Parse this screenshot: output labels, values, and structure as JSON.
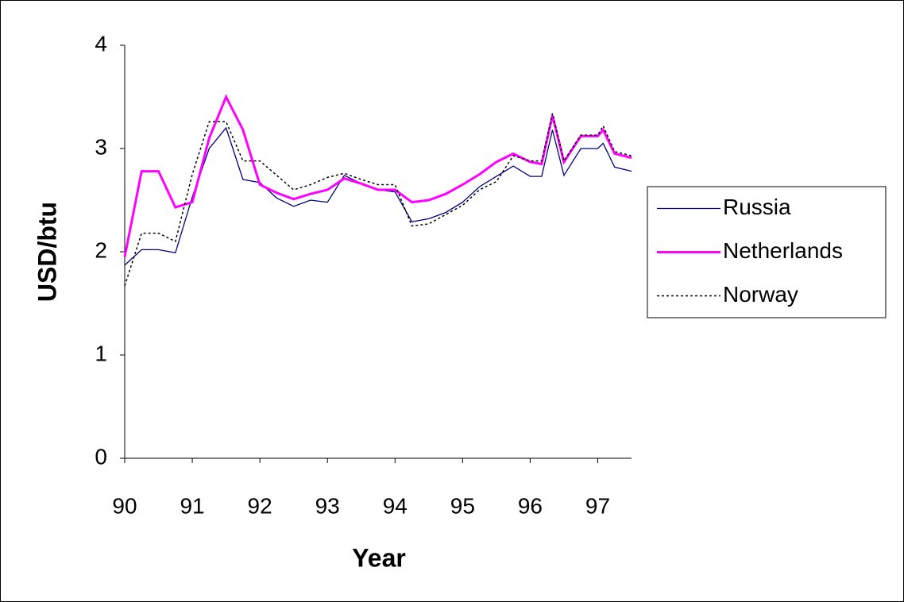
{
  "chart_data": {
    "type": "line",
    "xlabel": "Year",
    "ylabel": "USD/btu",
    "x": [
      90,
      90.25,
      90.5,
      90.75,
      91,
      91.25,
      91.5,
      91.75,
      92,
      92.25,
      92.5,
      92.75,
      93,
      93.25,
      93.5,
      93.75,
      94,
      94.25,
      94.5,
      94.75,
      95,
      95.25,
      95.5,
      95.75,
      96,
      96.17,
      96.33,
      96.5,
      96.75,
      97,
      97.08,
      97.25,
      97.5
    ],
    "series": [
      {
        "name": "Russia",
        "color": "#000080",
        "values": [
          1.87,
          2.02,
          2.02,
          1.99,
          2.53,
          3.0,
          3.2,
          2.7,
          2.67,
          2.52,
          2.44,
          2.5,
          2.48,
          2.74,
          2.66,
          2.6,
          2.58,
          2.29,
          2.32,
          2.38,
          2.48,
          2.63,
          2.73,
          2.83,
          2.73,
          2.73,
          3.18,
          2.74,
          3.0,
          3.0,
          3.05,
          2.82,
          2.78
        ]
      },
      {
        "name": "Netherlands",
        "color": "#ff00ff",
        "values": [
          1.95,
          2.78,
          2.78,
          2.43,
          2.48,
          3.1,
          3.5,
          3.18,
          2.65,
          2.57,
          2.51,
          2.56,
          2.6,
          2.71,
          2.66,
          2.6,
          2.6,
          2.48,
          2.5,
          2.56,
          2.65,
          2.75,
          2.87,
          2.95,
          2.87,
          2.85,
          3.32,
          2.87,
          3.12,
          3.12,
          3.18,
          2.95,
          2.91
        ]
      },
      {
        "name": "Norway",
        "color": "#000000",
        "values": [
          1.67,
          2.18,
          2.18,
          2.1,
          2.75,
          3.26,
          3.26,
          2.88,
          2.88,
          2.74,
          2.6,
          2.65,
          2.72,
          2.76,
          2.7,
          2.65,
          2.65,
          2.25,
          2.27,
          2.36,
          2.45,
          2.6,
          2.68,
          2.93,
          2.88,
          2.88,
          3.34,
          2.88,
          3.13,
          3.13,
          3.22,
          2.97,
          2.93
        ]
      }
    ],
    "xlim": [
      90,
      97.5
    ],
    "xticks": [
      90,
      91,
      92,
      93,
      94,
      95,
      96,
      97
    ],
    "ylim": [
      0,
      4
    ],
    "yticks": [
      0,
      1,
      2,
      3,
      4
    ],
    "legend": "right"
  }
}
